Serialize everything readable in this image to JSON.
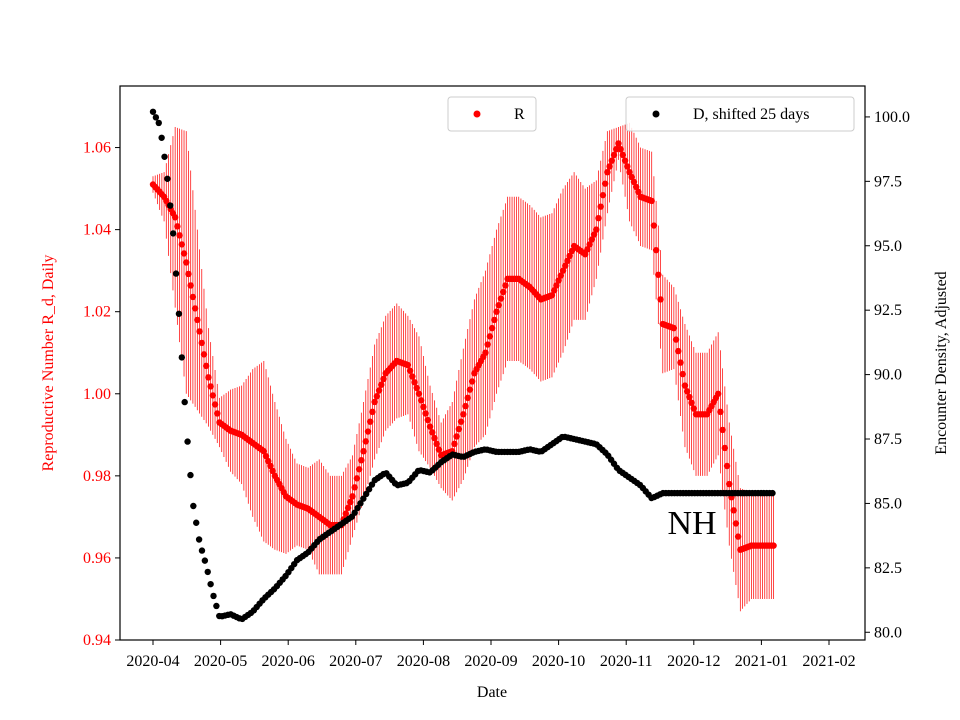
{
  "chart_data": {
    "type": "scatter",
    "title": "",
    "annotation": "NH",
    "xlabel": "Date",
    "ylabel_left": "Reproductive Number R_d, Daily",
    "ylabel_right": "Encounter Density, Adjusted",
    "ylim_left": [
      0.94,
      1.075
    ],
    "ylim_right": [
      79.7,
      101.2
    ],
    "x_ticks": [
      "2020-04",
      "2020-05",
      "2020-06",
      "2020-07",
      "2020-08",
      "2020-09",
      "2020-10",
      "2020-11",
      "2020-12",
      "2021-01",
      "2021-02"
    ],
    "y_ticks_left": [
      "0.94",
      "0.96",
      "0.98",
      "1.00",
      "1.02",
      "1.04",
      "1.06"
    ],
    "y_ticks_right": [
      "80.0",
      "82.5",
      "85.0",
      "87.5",
      "90.0",
      "92.5",
      "95.0",
      "97.5",
      "100.0"
    ],
    "legend": [
      {
        "name": "R",
        "color": "#ff0000"
      },
      {
        "name": "D, shifted 25 days",
        "color": "#000000"
      }
    ],
    "series": [
      {
        "name": "R",
        "axis": "left",
        "color": "#ff0000",
        "points": [
          {
            "day": 0,
            "value": 1.051,
            "err": 0.002
          },
          {
            "day": 5,
            "value": 1.048,
            "err": 0.006
          },
          {
            "day": 10,
            "value": 1.043,
            "err": 0.022
          },
          {
            "day": 15,
            "value": 1.032,
            "err": 0.032
          },
          {
            "day": 20,
            "value": 1.018,
            "err": 0.022
          },
          {
            "day": 25,
            "value": 1.004,
            "err": 0.012
          },
          {
            "day": 30,
            "value": 0.993,
            "err": 0.006
          },
          {
            "day": 35,
            "value": 0.991,
            "err": 0.01
          },
          {
            "day": 40,
            "value": 0.99,
            "err": 0.012
          },
          {
            "day": 45,
            "value": 0.988,
            "err": 0.018
          },
          {
            "day": 50,
            "value": 0.986,
            "err": 0.022
          },
          {
            "day": 55,
            "value": 0.98,
            "err": 0.018
          },
          {
            "day": 60,
            "value": 0.975,
            "err": 0.014
          },
          {
            "day": 65,
            "value": 0.973,
            "err": 0.01
          },
          {
            "day": 70,
            "value": 0.972,
            "err": 0.01
          },
          {
            "day": 75,
            "value": 0.97,
            "err": 0.014
          },
          {
            "day": 80,
            "value": 0.968,
            "err": 0.012
          },
          {
            "day": 85,
            "value": 0.968,
            "err": 0.012
          },
          {
            "day": 90,
            "value": 0.975,
            "err": 0.01
          },
          {
            "day": 95,
            "value": 0.986,
            "err": 0.012
          },
          {
            "day": 100,
            "value": 0.998,
            "err": 0.014
          },
          {
            "day": 105,
            "value": 1.005,
            "err": 0.014
          },
          {
            "day": 110,
            "value": 1.008,
            "err": 0.014
          },
          {
            "day": 115,
            "value": 1.007,
            "err": 0.012
          },
          {
            "day": 120,
            "value": 1.0,
            "err": 0.014
          },
          {
            "day": 125,
            "value": 0.992,
            "err": 0.01
          },
          {
            "day": 130,
            "value": 0.985,
            "err": 0.008
          },
          {
            "day": 135,
            "value": 0.986,
            "err": 0.012
          },
          {
            "day": 140,
            "value": 0.995,
            "err": 0.016
          },
          {
            "day": 145,
            "value": 1.005,
            "err": 0.018
          },
          {
            "day": 150,
            "value": 1.01,
            "err": 0.02
          },
          {
            "day": 155,
            "value": 1.02,
            "err": 0.02
          },
          {
            "day": 160,
            "value": 1.028,
            "err": 0.02
          },
          {
            "day": 165,
            "value": 1.028,
            "err": 0.02
          },
          {
            "day": 170,
            "value": 1.026,
            "err": 0.02
          },
          {
            "day": 175,
            "value": 1.023,
            "err": 0.02
          },
          {
            "day": 180,
            "value": 1.024,
            "err": 0.02
          },
          {
            "day": 185,
            "value": 1.03,
            "err": 0.02
          },
          {
            "day": 190,
            "value": 1.036,
            "err": 0.018
          },
          {
            "day": 195,
            "value": 1.034,
            "err": 0.016
          },
          {
            "day": 200,
            "value": 1.04,
            "err": 0.012
          },
          {
            "day": 205,
            "value": 1.054,
            "err": 0.01
          },
          {
            "day": 210,
            "value": 1.061,
            "err": 0.004
          },
          {
            "day": 215,
            "value": 1.054,
            "err": 0.012
          },
          {
            "day": 220,
            "value": 1.048,
            "err": 0.012
          },
          {
            "day": 225,
            "value": 1.047,
            "err": 0.012
          },
          {
            "day": 230,
            "value": 1.017,
            "err": 0.012
          },
          {
            "day": 235,
            "value": 1.016,
            "err": 0.01
          },
          {
            "day": 240,
            "value": 1.002,
            "err": 0.015
          },
          {
            "day": 245,
            "value": 0.995,
            "err": 0.015
          },
          {
            "day": 250,
            "value": 0.995,
            "err": 0.015
          },
          {
            "day": 255,
            "value": 1.0,
            "err": 0.015
          },
          {
            "day": 260,
            "value": 0.978,
            "err": 0.015
          },
          {
            "day": 265,
            "value": 0.962,
            "err": 0.015
          },
          {
            "day": 270,
            "value": 0.963,
            "err": 0.013
          },
          {
            "day": 275,
            "value": 0.963,
            "err": 0.013
          },
          {
            "day": 280,
            "value": 0.963,
            "err": 0.013
          }
        ]
      },
      {
        "name": "D, shifted 25 days",
        "axis": "right",
        "color": "#000000",
        "points": [
          {
            "day": 0,
            "value": 100.2
          },
          {
            "day": 3,
            "value": 99.7
          },
          {
            "day": 6,
            "value": 98.0
          },
          {
            "day": 9,
            "value": 95.6
          },
          {
            "day": 12,
            "value": 92.0
          },
          {
            "day": 15,
            "value": 88.0
          },
          {
            "day": 18,
            "value": 85.0
          },
          {
            "day": 21,
            "value": 83.5
          },
          {
            "day": 24,
            "value": 82.6
          },
          {
            "day": 27,
            "value": 81.5
          },
          {
            "day": 30,
            "value": 80.6
          },
          {
            "day": 35,
            "value": 80.7
          },
          {
            "day": 40,
            "value": 80.5
          },
          {
            "day": 45,
            "value": 80.8
          },
          {
            "day": 50,
            "value": 81.3
          },
          {
            "day": 55,
            "value": 81.7
          },
          {
            "day": 60,
            "value": 82.2
          },
          {
            "day": 65,
            "value": 82.8
          },
          {
            "day": 70,
            "value": 83.1
          },
          {
            "day": 75,
            "value": 83.6
          },
          {
            "day": 80,
            "value": 83.9
          },
          {
            "day": 85,
            "value": 84.2
          },
          {
            "day": 90,
            "value": 84.5
          },
          {
            "day": 95,
            "value": 85.2
          },
          {
            "day": 100,
            "value": 85.9
          },
          {
            "day": 105,
            "value": 86.2
          },
          {
            "day": 110,
            "value": 85.7
          },
          {
            "day": 115,
            "value": 85.8
          },
          {
            "day": 120,
            "value": 86.3
          },
          {
            "day": 125,
            "value": 86.2
          },
          {
            "day": 130,
            "value": 86.6
          },
          {
            "day": 135,
            "value": 86.9
          },
          {
            "day": 140,
            "value": 86.8
          },
          {
            "day": 145,
            "value": 87.0
          },
          {
            "day": 150,
            "value": 87.1
          },
          {
            "day": 155,
            "value": 87.0
          },
          {
            "day": 160,
            "value": 87.0
          },
          {
            "day": 165,
            "value": 87.0
          },
          {
            "day": 170,
            "value": 87.1
          },
          {
            "day": 175,
            "value": 87.0
          },
          {
            "day": 180,
            "value": 87.3
          },
          {
            "day": 185,
            "value": 87.6
          },
          {
            "day": 190,
            "value": 87.5
          },
          {
            "day": 195,
            "value": 87.4
          },
          {
            "day": 200,
            "value": 87.3
          },
          {
            "day": 205,
            "value": 86.9
          },
          {
            "day": 210,
            "value": 86.3
          },
          {
            "day": 215,
            "value": 86.0
          },
          {
            "day": 220,
            "value": 85.7
          },
          {
            "day": 225,
            "value": 85.2
          },
          {
            "day": 230,
            "value": 85.4
          },
          {
            "day": 235,
            "value": 85.4
          },
          {
            "day": 240,
            "value": 85.4
          },
          {
            "day": 245,
            "value": 85.4
          },
          {
            "day": 250,
            "value": 85.4
          },
          {
            "day": 255,
            "value": 85.4
          },
          {
            "day": 260,
            "value": 85.4
          },
          {
            "day": 265,
            "value": 85.4
          },
          {
            "day": 270,
            "value": 85.4
          },
          {
            "day": 275,
            "value": 85.4
          },
          {
            "day": 280,
            "value": 85.4
          }
        ]
      }
    ]
  }
}
